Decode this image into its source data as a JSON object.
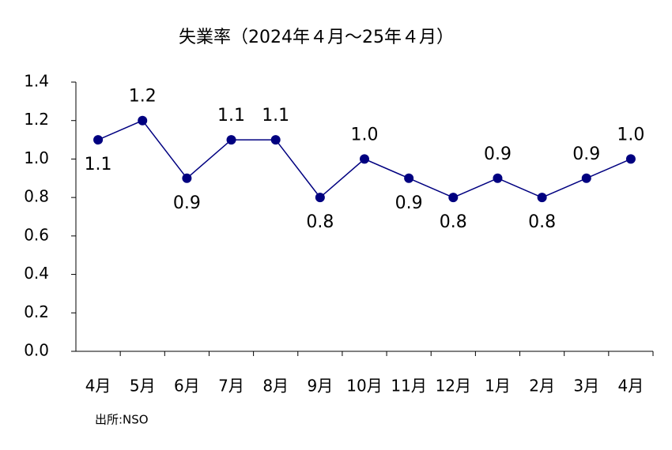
{
  "chart_data": {
    "type": "line",
    "title": "失業率（2024年４月～25年４月）",
    "source": "出所:NSO",
    "categories": [
      "4月",
      "5月",
      "6月",
      "7月",
      "8月",
      "9月",
      "10月",
      "11月",
      "12月",
      "1月",
      "2月",
      "3月",
      "4月"
    ],
    "values": [
      1.1,
      1.2,
      0.9,
      1.1,
      1.1,
      0.8,
      1.0,
      0.9,
      0.8,
      0.9,
      0.8,
      0.9,
      1.0
    ],
    "value_labels": [
      "1.1",
      "1.2",
      "0.9",
      "1.1",
      "1.1",
      "0.8",
      "1.0",
      "0.9",
      "0.8",
      "0.9",
      "0.8",
      "0.9",
      "1.0"
    ],
    "color": "#000080",
    "ylim": [
      0,
      1.4
    ],
    "yticks": [
      {
        "value": 0,
        "label": "0.0"
      },
      0.2,
      0.4,
      0.6,
      0.8,
      {
        "value": 1,
        "label": "1.0"
      },
      1.2,
      1.4
    ],
    "grid": false
  }
}
